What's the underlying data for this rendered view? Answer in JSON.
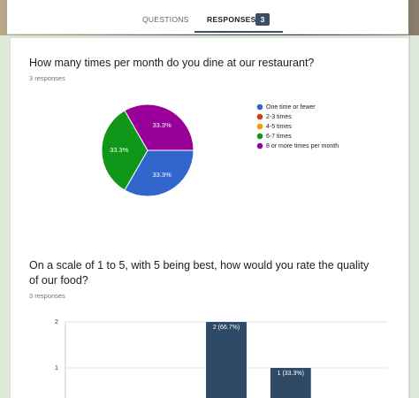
{
  "tabs": [
    {
      "label": "QUESTIONS"
    },
    {
      "label": "RESPONSES",
      "count": 3
    }
  ],
  "questions": [
    {
      "title": "How many times per month do you dine at our restaurant?",
      "responses": "3 responses",
      "chart_data": {
        "type": "pie",
        "categories": [
          "One time or fewer",
          "2-3 times",
          "4-5 times",
          "6-7 times",
          "8 or more times per month"
        ],
        "values": [
          33.3,
          0,
          0,
          33.3,
          33.3
        ],
        "value_labels": [
          "33.3%",
          null,
          null,
          "33.3%",
          "33.3%"
        ],
        "colors": [
          "#3366cc",
          "#dc3912",
          "#ff9900",
          "#109618",
          "#990099"
        ]
      }
    },
    {
      "title": "On a scale of 1 to 5, with 5 being best, how would you rate the quality of our food?",
      "responses": "3 responses",
      "chart_data": {
        "type": "bar",
        "categories": [
          null,
          null,
          null,
          null,
          null
        ],
        "values": [
          0,
          0,
          2,
          1,
          0
        ],
        "value_labels": [
          null,
          null,
          "2 (66.7%)",
          "1 (33.3%)",
          null
        ],
        "color": "#2e4a66",
        "ylim": [
          0,
          2
        ],
        "yticks": [
          1,
          2
        ],
        "grid": true
      }
    }
  ]
}
